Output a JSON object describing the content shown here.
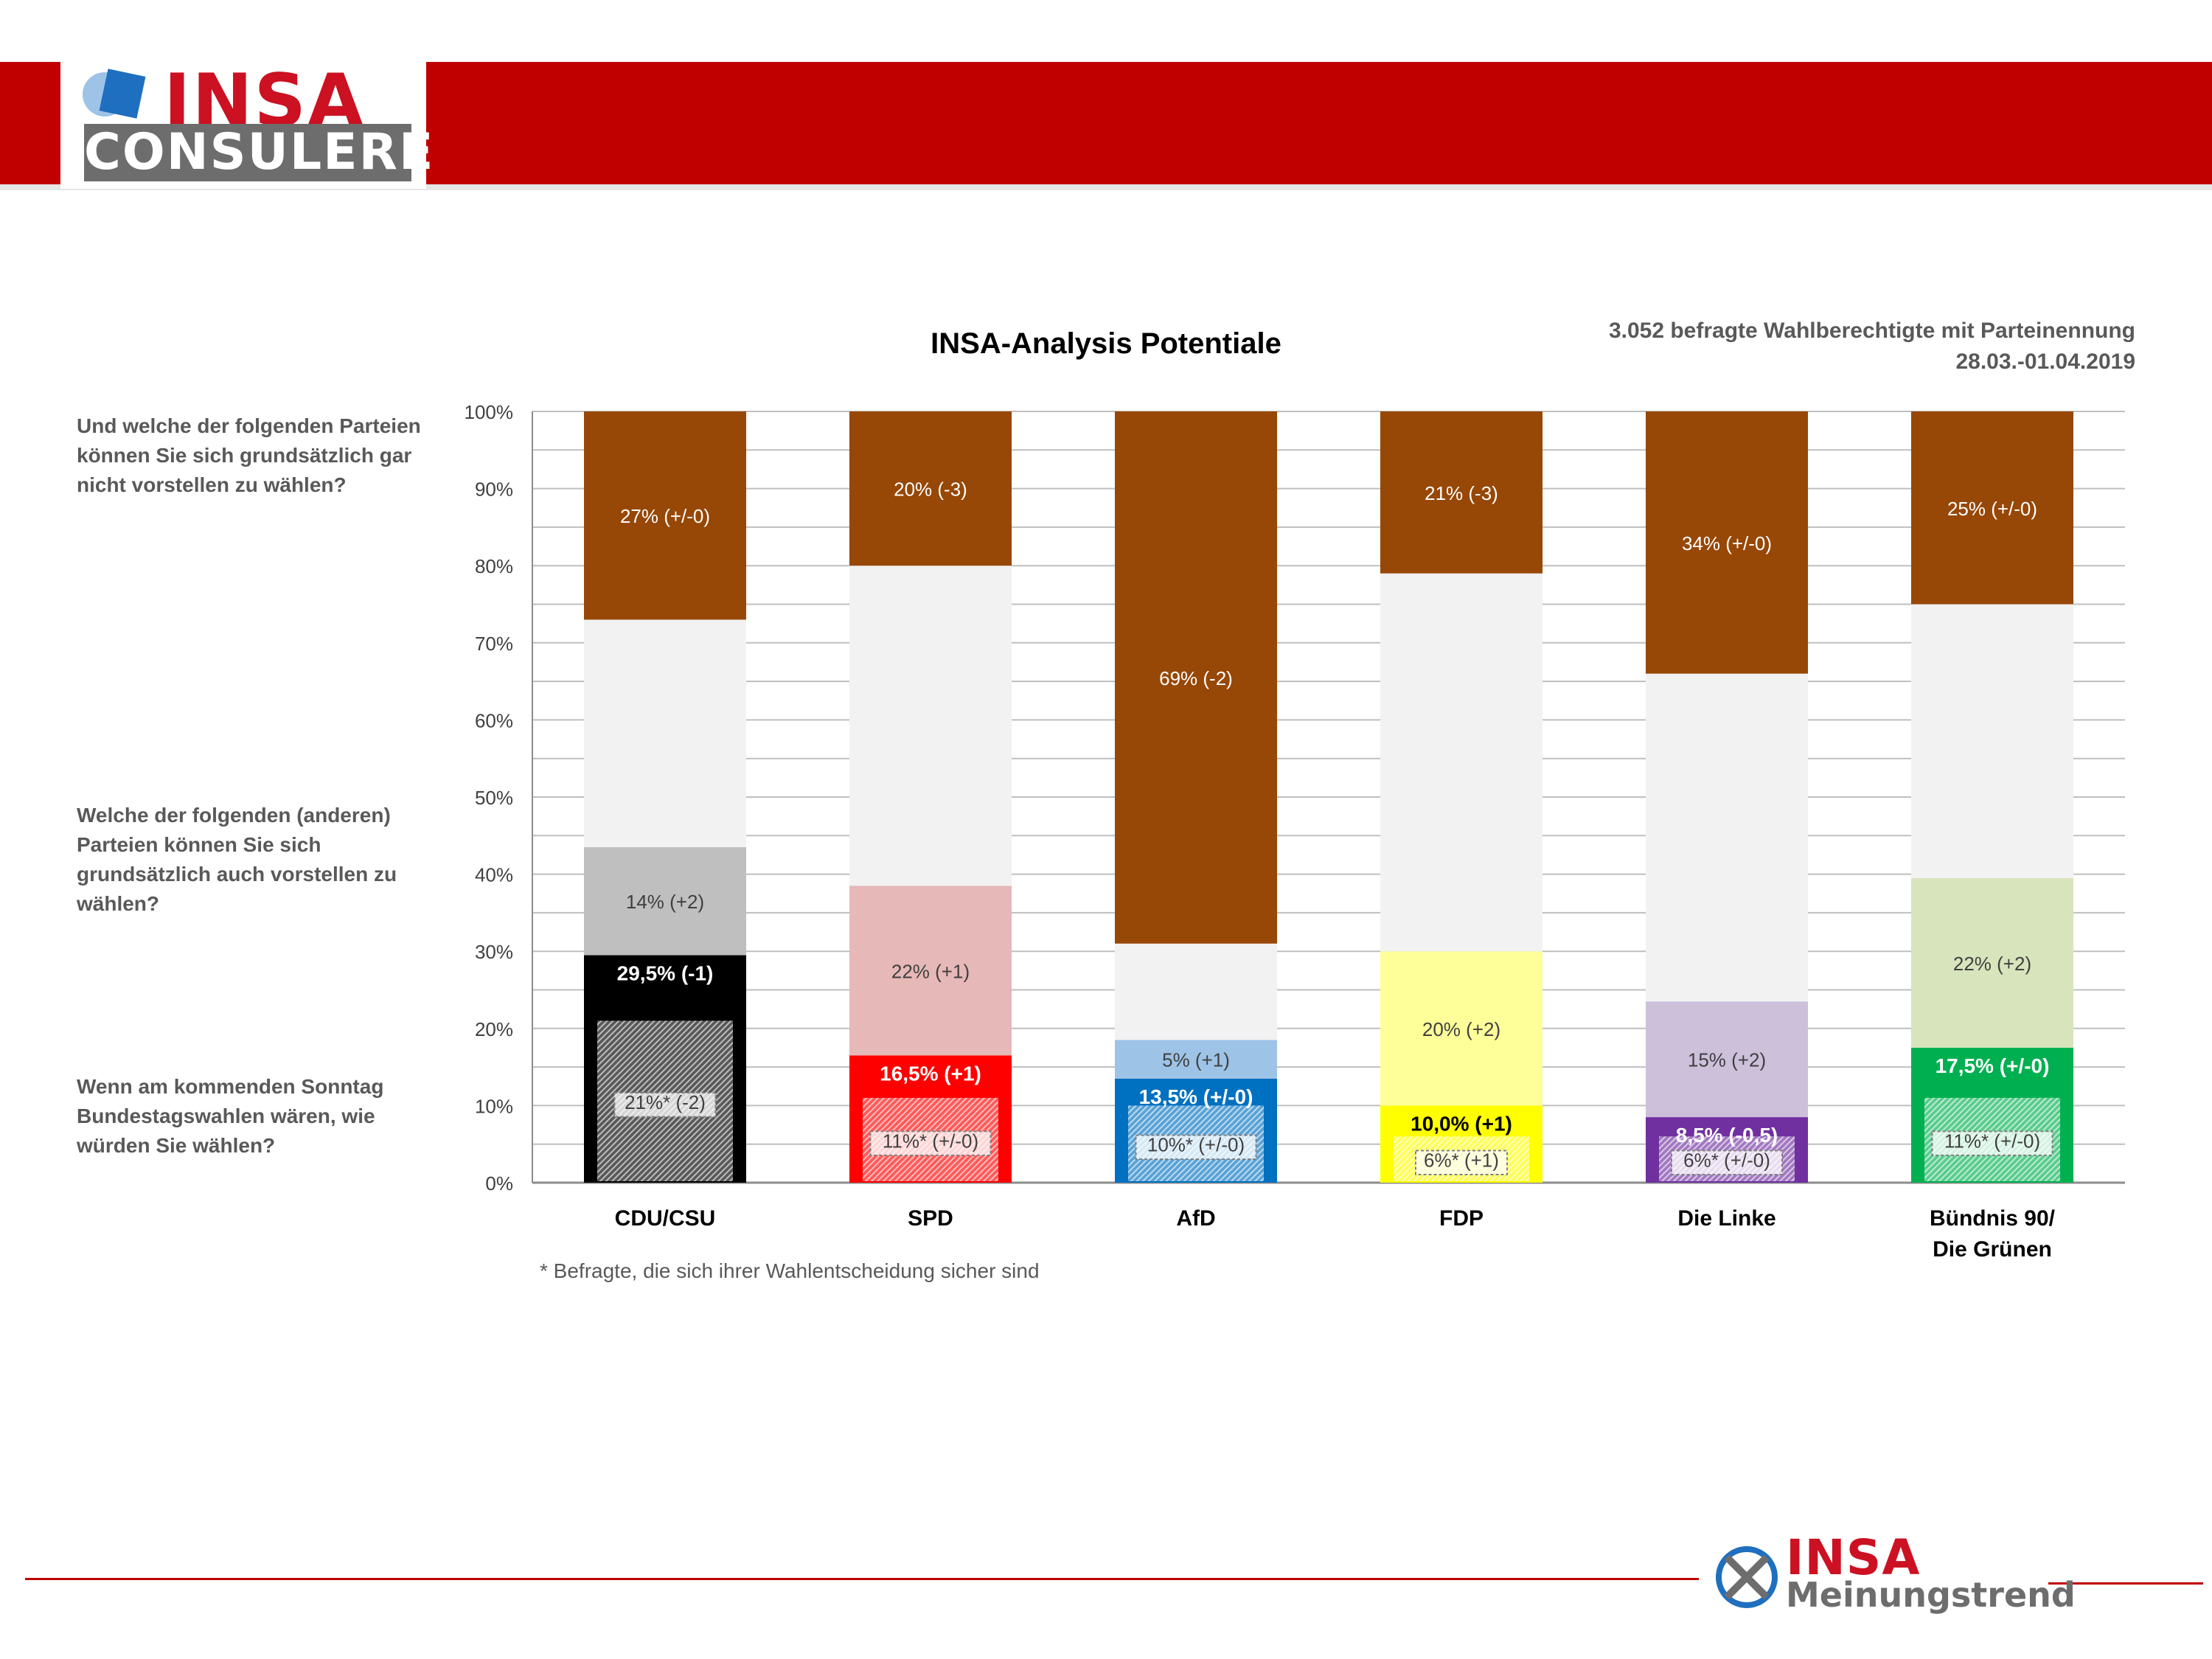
{
  "header": {
    "logo_top": "INSA",
    "logo_bottom": "CONSULERE"
  },
  "questions": [
    "Und welche der folgenden Parteien können Sie sich grundsätzlich gar nicht vorstellen zu wählen?",
    "Welche der folgenden (anderen) Parteien können Sie sich grundsätzlich auch vorstellen zu wählen?",
    "Wenn am kommenden Sonntag Bundestagswahlen wären, wie würden Sie wählen?"
  ],
  "info": {
    "respondents": "3.052 befragte Wahlberechtigte mit Parteinennung",
    "period": "28.03.-01.04.2019"
  },
  "footnote": "* Befragte, die sich ihrer Wahlentscheidung sicher sind",
  "footer": {
    "brand": "INSA",
    "product": "Meinungstrend"
  },
  "colors": {
    "banner": "#c00000",
    "no_vote": "#974706",
    "neutral": "#f2f2f2",
    "grid": "#bfbfbf"
  },
  "chart_data": {
    "type": "bar",
    "stacked": true,
    "title": "INSA-Analysis Potentiale",
    "ylim": [
      0,
      100
    ],
    "y_ticks": [
      "0%",
      "10%",
      "20%",
      "30%",
      "40%",
      "50%",
      "60%",
      "70%",
      "80%",
      "90%",
      "100%"
    ],
    "grid": true,
    "categories": [
      {
        "label": [
          "CDU/CSU"
        ],
        "sure": 21,
        "vote": 29.5,
        "potential": 14,
        "no_vote": 27,
        "sure_label": "21%* (-2)",
        "vote_label": "29,5% (-1)",
        "potential_label": "14% (+2)",
        "no_vote_label": "27% (+/-0)",
        "color": "#000000",
        "light": "#bfbfbf",
        "vote_text": "#ffffff",
        "sure_text": "#404040"
      },
      {
        "label": [
          "SPD"
        ],
        "sure": 11,
        "vote": 16.5,
        "potential": 22,
        "no_vote": 20,
        "sure_label": "11%* (+/-0)",
        "vote_label": "16,5% (+1)",
        "potential_label": "22% (+1)",
        "no_vote_label": "20% (-3)",
        "color": "#ff0000",
        "light": "#e6b8b7",
        "vote_text": "#ffffff",
        "sure_text": "#404040"
      },
      {
        "label": [
          "AfD"
        ],
        "sure": 10,
        "vote": 13.5,
        "potential": 5,
        "no_vote": 69,
        "sure_label": "10%* (+/-0)",
        "vote_label": "13,5% (+/-0)",
        "potential_label": "5% (+1)",
        "no_vote_label": "69% (-2)",
        "color": "#0070c0",
        "light": "#9dc3e6",
        "vote_text": "#ffffff",
        "sure_text": "#404040"
      },
      {
        "label": [
          "FDP"
        ],
        "sure": 6,
        "vote": 10.0,
        "potential": 20,
        "no_vote": 21,
        "sure_label": "6%* (+1)",
        "vote_label": "10,0% (+1)",
        "potential_label": "20% (+2)",
        "no_vote_label": "21% (-3)",
        "color": "#ffff00",
        "light": "#ffff99",
        "vote_text": "#000000",
        "sure_text": "#404040"
      },
      {
        "label": [
          "Die Linke"
        ],
        "sure": 6,
        "vote": 8.5,
        "potential": 15,
        "no_vote": 34,
        "sure_label": "6%* (+/-0)",
        "vote_label": "8,5% (-0,5)",
        "potential_label": "15% (+2)",
        "no_vote_label": "34% (+/-0)",
        "color": "#7030a0",
        "light": "#ccc0da",
        "vote_text": "#ffffff",
        "sure_text": "#404040"
      },
      {
        "label": [
          "Bündnis 90/",
          "Die Grünen"
        ],
        "sure": 11,
        "vote": 17.5,
        "potential": 22,
        "no_vote": 25,
        "sure_label": "11%* (+/-0)",
        "vote_label": "17,5% (+/-0)",
        "potential_label": "22% (+2)",
        "no_vote_label": "25% (+/-0)",
        "color": "#00b050",
        "light": "#d8e4bc",
        "vote_text": "#ffffff",
        "sure_text": "#404040"
      }
    ]
  }
}
